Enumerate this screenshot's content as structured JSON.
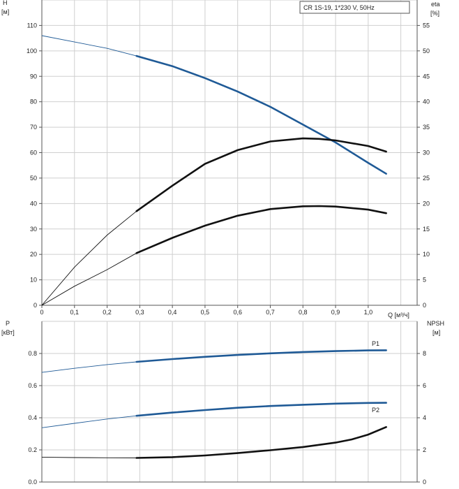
{
  "chart_data": [
    {
      "type": "line",
      "title_box": "CR 1S-19, 1*230 V, 50Hz",
      "ylabel_left": [
        "H",
        "[м]"
      ],
      "ylabel_right": [
        "eta",
        "[%]"
      ],
      "xlabel": "Q [м³/ч]",
      "xlim": [
        0,
        1.15
      ],
      "ylim_left": [
        0,
        120
      ],
      "ylim_right": [
        0,
        60
      ],
      "x_ticks": [
        "0",
        "0,1",
        "0,2",
        "0,3",
        "0,4",
        "0,5",
        "0,6",
        "0,7",
        "0,8",
        "0,9",
        "1,0"
      ],
      "y_ticks_left": [
        "0",
        "10",
        "20",
        "30",
        "40",
        "50",
        "60",
        "70",
        "80",
        "90",
        "100",
        "110"
      ],
      "y_ticks_right": [
        "0",
        "5",
        "10",
        "15",
        "20",
        "25",
        "30",
        "35",
        "40",
        "45",
        "50",
        "55"
      ],
      "grid": true,
      "series": [
        {
          "axis": "left",
          "color": "#1f5a96",
          "x": [
            0,
            0.1,
            0.2,
            0.29,
            0.4,
            0.5,
            0.6,
            0.7,
            0.8,
            0.9,
            1.0,
            1.055
          ],
          "y": [
            106,
            103.5,
            101,
            98,
            94,
            89.3,
            84,
            78,
            71,
            64,
            56,
            51.7
          ],
          "op_x": [
            0.29,
            1.055
          ]
        },
        {
          "axis": "right",
          "color": "#111111",
          "x": [
            0,
            0.1,
            0.2,
            0.29,
            0.4,
            0.5,
            0.6,
            0.7,
            0.8,
            0.85,
            0.9,
            1.0,
            1.055
          ],
          "y": [
            0,
            7.5,
            13.8,
            18.5,
            23.5,
            27.8,
            30.5,
            32.2,
            32.8,
            32.7,
            32.4,
            31.3,
            30.2
          ],
          "op_x": [
            0.29,
            1.055
          ]
        },
        {
          "axis": "left",
          "color": "#111111",
          "x": [
            0,
            0.1,
            0.2,
            0.29,
            0.4,
            0.5,
            0.6,
            0.7,
            0.8,
            0.85,
            0.9,
            1.0,
            1.055
          ],
          "y": [
            0,
            7.5,
            14,
            20.5,
            26.5,
            31.3,
            35.2,
            37.8,
            38.9,
            39,
            38.8,
            37.6,
            36.2
          ],
          "op_x": [
            0.29,
            1.055
          ]
        }
      ]
    },
    {
      "type": "line",
      "ylabel_left": [
        "P",
        "[кВт]"
      ],
      "ylabel_right": [
        "NPSH",
        "[м]"
      ],
      "xlim": [
        0,
        1.15
      ],
      "ylim_left": [
        0,
        1.0
      ],
      "ylim_right": [
        0,
        10
      ],
      "y_ticks_left": [
        "0.0",
        "0.2",
        "0.4",
        "0.6",
        "0.8"
      ],
      "y_ticks_right": [
        "0",
        "2",
        "4",
        "6",
        "8"
      ],
      "grid": true,
      "series": [
        {
          "name": "P1",
          "axis": "left",
          "color": "#1f5a96",
          "x": [
            0,
            0.1,
            0.2,
            0.29,
            0.4,
            0.5,
            0.6,
            0.7,
            0.8,
            0.9,
            1.0,
            1.055
          ],
          "y": [
            0.682,
            0.708,
            0.731,
            0.748,
            0.765,
            0.779,
            0.791,
            0.801,
            0.809,
            0.815,
            0.819,
            0.82
          ],
          "op_x": [
            0.29,
            1.055
          ]
        },
        {
          "name": "P2",
          "axis": "left",
          "color": "#1f5a96",
          "x": [
            0,
            0.1,
            0.2,
            0.29,
            0.4,
            0.5,
            0.6,
            0.7,
            0.8,
            0.9,
            1.0,
            1.055
          ],
          "y": [
            0.338,
            0.365,
            0.392,
            0.412,
            0.432,
            0.448,
            0.462,
            0.473,
            0.481,
            0.488,
            0.492,
            0.493
          ],
          "op_x": [
            0.29,
            1.055
          ]
        },
        {
          "axis": "right",
          "color": "#111111",
          "x": [
            0,
            0.1,
            0.2,
            0.29,
            0.4,
            0.5,
            0.6,
            0.7,
            0.8,
            0.9,
            0.95,
            1.0,
            1.055
          ],
          "y": [
            1.55,
            1.52,
            1.51,
            1.5,
            1.55,
            1.65,
            1.8,
            1.98,
            2.18,
            2.45,
            2.65,
            2.95,
            3.42
          ],
          "op_x": [
            0.29,
            1.055
          ]
        }
      ]
    }
  ]
}
